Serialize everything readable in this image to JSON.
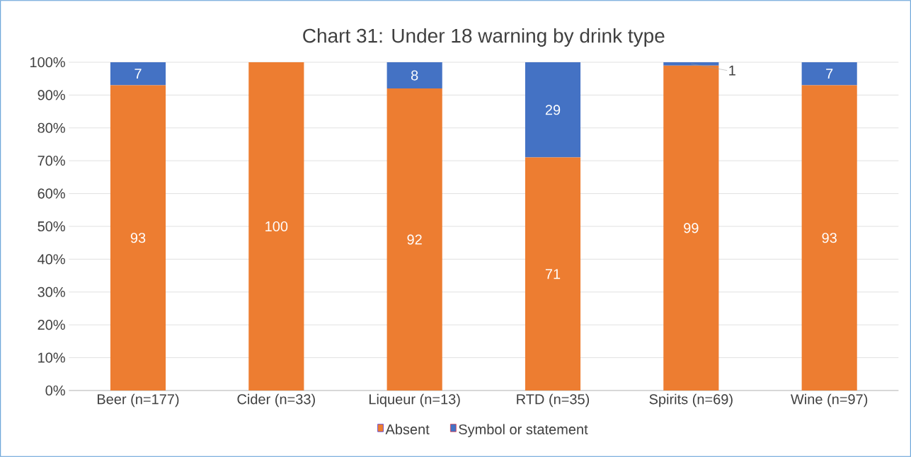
{
  "chart_data": {
    "type": "bar",
    "title": "Chart 31: Under 18 warning by drink type",
    "categories": [
      "Beer (n=177)",
      "Cider (n=33)",
      "Liqueur (n=13)",
      "RTD (n=35)",
      "Spirits (n=69)",
      "Wine (n=97)"
    ],
    "series": [
      {
        "name": "Absent",
        "color": "#ed7d31",
        "values": [
          93,
          100,
          92,
          71,
          99,
          93
        ],
        "value_labels": [
          "93",
          "100",
          "92",
          "71",
          "99",
          "93"
        ]
      },
      {
        "name": "Symbol or statement",
        "color": "#4472c4",
        "values": [
          7,
          0,
          8,
          29,
          1,
          7
        ],
        "value_labels": [
          "7",
          null,
          "8",
          "29",
          "1",
          "7"
        ]
      }
    ],
    "stacked": true,
    "ylim": [
      0,
      100
    ],
    "yticks": [
      {
        "value": 0,
        "label": "0%"
      },
      {
        "value": 10,
        "label": "10%"
      },
      {
        "value": 20,
        "label": "20%"
      },
      {
        "value": 30,
        "label": "30%"
      },
      {
        "value": 40,
        "label": "40%"
      },
      {
        "value": 50,
        "label": "50%"
      },
      {
        "value": 60,
        "label": "60%"
      },
      {
        "value": 70,
        "label": "70%"
      },
      {
        "value": 80,
        "label": "80%"
      },
      {
        "value": 90,
        "label": "90%"
      },
      {
        "value": 100,
        "label": "100%"
      }
    ],
    "grid": "y",
    "legend": "bottom"
  }
}
